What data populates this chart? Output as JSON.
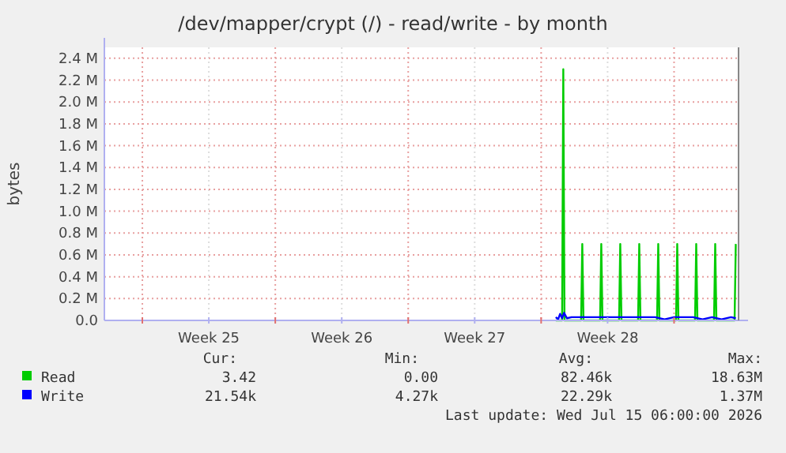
{
  "chart_data": {
    "type": "line",
    "title": "/dev/mapper/crypt (/) - read/write - by month",
    "ylabel": "bytes",
    "xlim": [
      "2026-06-13T00:00",
      "2026-07-16T09:30"
    ],
    "xticks": [
      {
        "value": "2026-06-15T00:00",
        "label": null
      },
      {
        "value": "2026-06-18T12:00",
        "label": "Week 25"
      },
      {
        "value": "2026-06-22T00:00",
        "label": null
      },
      {
        "value": "2026-06-25T12:00",
        "label": "Week 26"
      },
      {
        "value": "2026-06-29T00:00",
        "label": null
      },
      {
        "value": "2026-07-02T12:00",
        "label": "Week 27"
      },
      {
        "value": "2026-07-06T00:00",
        "label": null
      },
      {
        "value": "2026-07-09T12:00",
        "label": "Week 28"
      },
      {
        "value": "2026-07-13T00:00",
        "label": null
      }
    ],
    "ylim": [
      0,
      2500000
    ],
    "yticks": [
      {
        "value": 0,
        "label": "0.0"
      },
      {
        "value": 200000,
        "label": "0.2 M"
      },
      {
        "value": 400000,
        "label": "0.4 M"
      },
      {
        "value": 600000,
        "label": "0.6 M"
      },
      {
        "value": 800000,
        "label": "0.8 M"
      },
      {
        "value": 1000000,
        "label": "1.0 M"
      },
      {
        "value": 1200000,
        "label": "1.2 M"
      },
      {
        "value": 1400000,
        "label": "1.4 M"
      },
      {
        "value": 1600000,
        "label": "1.6 M"
      },
      {
        "value": 1800000,
        "label": "1.8 M"
      },
      {
        "value": 2000000,
        "label": "2.0 M"
      },
      {
        "value": 2200000,
        "label": "2.2 M"
      },
      {
        "value": 2400000,
        "label": "2.4 M"
      }
    ],
    "grid": true,
    "legend": "bottom left",
    "marker": "none",
    "line_style": "solid",
    "series": [
      {
        "name": "Read",
        "color": "#00cc00",
        "x": [
          "2026-07-06T18:30",
          "2026-07-07T02:30",
          "2026-07-07T04:00",
          "2026-07-07T05:30",
          "2026-07-08T02:30",
          "2026-07-08T04:00",
          "2026-07-08T05:30",
          "2026-07-09T02:30",
          "2026-07-09T04:00",
          "2026-07-09T05:30",
          "2026-07-10T02:30",
          "2026-07-10T04:00",
          "2026-07-10T05:30",
          "2026-07-11T02:30",
          "2026-07-11T04:00",
          "2026-07-11T05:30",
          "2026-07-12T02:30",
          "2026-07-12T04:00",
          "2026-07-12T05:30",
          "2026-07-13T02:30",
          "2026-07-13T04:00",
          "2026-07-13T05:30",
          "2026-07-14T02:30",
          "2026-07-14T04:00",
          "2026-07-14T05:30",
          "2026-07-15T02:30",
          "2026-07-15T04:00",
          "2026-07-15T05:30",
          "2026-07-16T04:30",
          "2026-07-16T06:00"
        ],
        "values": [
          0,
          0,
          2300000,
          0,
          0,
          700000,
          0,
          0,
          700000,
          0,
          0,
          700000,
          0,
          0,
          700000,
          0,
          0,
          700000,
          0,
          0,
          700000,
          0,
          0,
          700000,
          0,
          0,
          700000,
          0,
          0,
          700000
        ]
      },
      {
        "name": "Write",
        "color": "#0000ff",
        "x": [
          "2026-07-06T18:30",
          "2026-07-06T21:30",
          "2026-07-07T00:00",
          "2026-07-07T02:30",
          "2026-07-07T05:00",
          "2026-07-07T08:30",
          "2026-07-07T14:30",
          "2026-07-08T00:00",
          "2026-07-09T00:00",
          "2026-07-10T00:00",
          "2026-07-11T00:00",
          "2026-07-12T00:00",
          "2026-07-12T12:00",
          "2026-07-13T00:00",
          "2026-07-14T00:00",
          "2026-07-14T12:00",
          "2026-07-15T00:00",
          "2026-07-15T12:00",
          "2026-07-16T00:00",
          "2026-07-16T06:00"
        ],
        "values": [
          30000,
          10000,
          60000,
          20000,
          70000,
          20000,
          30000,
          30000,
          30000,
          30000,
          30000,
          30000,
          10000,
          30000,
          30000,
          10000,
          30000,
          10000,
          30000,
          20000
        ]
      }
    ],
    "annotations": [
      "Cur:",
      "Min:",
      "Avg:",
      "Max:",
      "3.42",
      "0.00",
      "82.46k",
      "18.63M",
      "21.54k",
      "4.27k",
      "22.29k",
      "1.37M",
      "Last update: Wed Jul 15 06:00:00 2026"
    ]
  }
}
